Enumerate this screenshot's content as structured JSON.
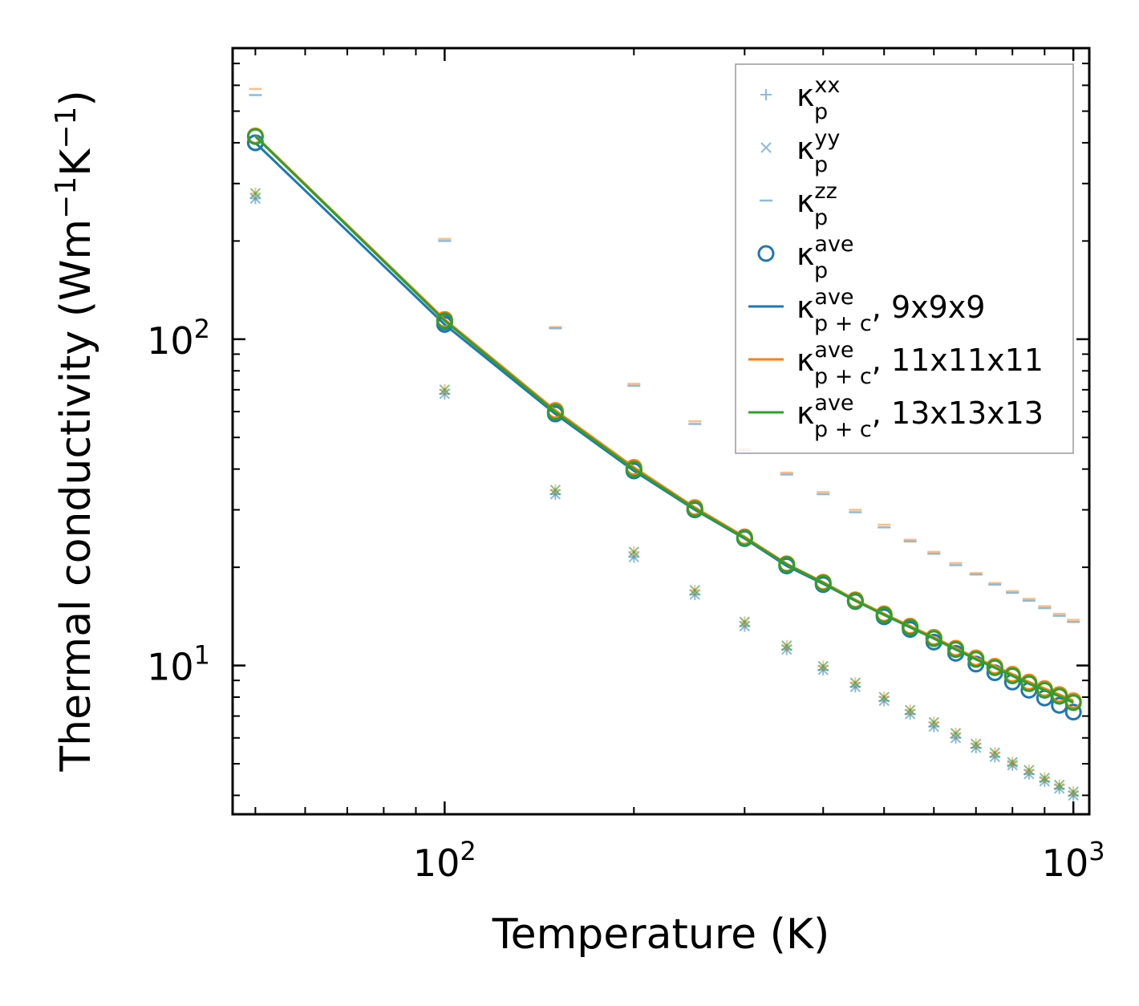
{
  "chart_data": {
    "type": "scatter",
    "title": "",
    "xlabel": "Temperature (K)",
    "ylabel": {
      "main": "Thermal conductivity (Wm",
      "sup1": "−1",
      "mid": "K",
      "sup2": "−1",
      "end": ")"
    },
    "xscale": "log",
    "yscale": "log",
    "xlim": [
      46,
      1060
    ],
    "ylim": [
      3.5,
      780
    ],
    "xticks": [
      {
        "value": 100,
        "base": "10",
        "exp": "2"
      },
      {
        "value": 1000,
        "base": "10",
        "exp": "3"
      }
    ],
    "yticks": [
      {
        "value": 10,
        "base": "10",
        "exp": "1"
      },
      {
        "value": 100,
        "base": "10",
        "exp": "2"
      }
    ],
    "legend_position": "top-right",
    "x": [
      50,
      100,
      150,
      200,
      250,
      300,
      350,
      400,
      450,
      500,
      550,
      600,
      650,
      700,
      750,
      800,
      850,
      900,
      950,
      1000
    ],
    "series": [
      {
        "name": "kp_xx",
        "kind": "marker",
        "marker": "plus",
        "color": "#1f77b4",
        "alpha": 0.5,
        "sub_var": "0",
        "values": [
          270,
          68,
          33.5,
          21.5,
          16.5,
          13.2,
          11.2,
          9.7,
          8.6,
          7.8,
          7.1,
          6.5,
          6.0,
          5.6,
          5.25,
          4.95,
          4.65,
          4.42,
          4.2,
          4.0
        ]
      },
      {
        "name": "kp_yy",
        "kind": "marker",
        "marker": "x",
        "color": "#1f77b4",
        "alpha": 0.5,
        "values": [
          270,
          68,
          33.5,
          21.5,
          16.5,
          13.2,
          11.2,
          9.7,
          8.6,
          7.8,
          7.1,
          6.5,
          6.0,
          5.6,
          5.25,
          4.95,
          4.65,
          4.42,
          4.2,
          4.0
        ]
      },
      {
        "name": "kp_zz",
        "kind": "marker",
        "marker": "hline",
        "color": "#1f77b4",
        "alpha": 0.5,
        "values": [
          560,
          200,
          108,
          72,
          55,
          45.5,
          38.5,
          33.5,
          29.5,
          26.5,
          24.0,
          22.0,
          20.3,
          19.0,
          17.7,
          16.7,
          15.8,
          15.0,
          14.2,
          13.6
        ]
      },
      {
        "name": "kp_ave",
        "kind": "marker",
        "marker": "circle",
        "color": "#1f77b4",
        "alpha": 1,
        "values": [
          400,
          113,
          59.5,
          39.5,
          30.0,
          24.5,
          20.2,
          17.7,
          15.7,
          14.1,
          12.9,
          11.8,
          10.9,
          10.1,
          9.5,
          8.9,
          8.4,
          7.95,
          7.55,
          7.2
        ]
      },
      {
        "name": "kpc_ave_9",
        "kind": "line+marker",
        "color": "#1f77b4",
        "values": [
          400,
          111,
          59,
          39.5,
          30.0,
          24.5,
          20.2,
          17.8,
          15.8,
          14.3,
          13.1,
          12.1,
          11.2,
          10.45,
          9.85,
          9.3,
          8.8,
          8.4,
          8.05,
          7.7
        ]
      },
      {
        "name": "kpc_ave_11",
        "kind": "line+marker",
        "color": "#ff7f0e",
        "values": [
          420,
          115,
          60.5,
          40.5,
          30.5,
          24.8,
          20.5,
          18.0,
          15.9,
          14.4,
          13.2,
          12.2,
          11.3,
          10.55,
          9.95,
          9.4,
          8.9,
          8.5,
          8.15,
          7.8
        ]
      },
      {
        "name": "kpc_ave_13",
        "kind": "line+marker",
        "color": "#2ca02c",
        "values": [
          418,
          114,
          59.8,
          40.0,
          30.2,
          24.6,
          20.4,
          17.9,
          15.8,
          14.3,
          13.1,
          12.1,
          11.2,
          10.45,
          9.85,
          9.3,
          8.8,
          8.4,
          8.05,
          7.7
        ]
      },
      {
        "name": "kp_xx_11",
        "kind": "marker",
        "marker": "plus",
        "color": "#ff7f0e",
        "alpha": 0.5,
        "values": [
          280,
          70,
          34.5,
          22.3,
          17.0,
          13.6,
          11.5,
          9.95,
          8.85,
          8.0,
          7.3,
          6.7,
          6.2,
          5.75,
          5.4,
          5.05,
          4.78,
          4.52,
          4.3,
          4.1
        ]
      },
      {
        "name": "kp_yy_13",
        "kind": "marker",
        "marker": "x",
        "color": "#2ca02c",
        "alpha": 0.6,
        "values": [
          280,
          70,
          34.5,
          22.3,
          17.0,
          13.6,
          11.5,
          9.95,
          8.85,
          8.0,
          7.3,
          6.7,
          6.2,
          5.75,
          5.4,
          5.05,
          4.78,
          4.52,
          4.3,
          4.1
        ]
      },
      {
        "name": "kp_zz_11",
        "kind": "marker",
        "marker": "hline",
        "color": "#ff7f0e",
        "alpha": 0.5,
        "values": [
          585,
          203,
          109,
          73,
          56,
          46,
          39,
          34,
          30,
          27,
          24.3,
          22.3,
          20.6,
          19.2,
          17.9,
          16.9,
          16.0,
          15.2,
          14.4,
          13.8
        ]
      }
    ],
    "legend": [
      {
        "marker": "plus",
        "color": "#1f77b4",
        "alpha": 0.5,
        "k": "κ",
        "sup": "xx",
        "sub": "p",
        "suffix": ""
      },
      {
        "marker": "x",
        "color": "#1f77b4",
        "alpha": 0.5,
        "k": "κ",
        "sup": "yy",
        "sub": "p",
        "suffix": ""
      },
      {
        "marker": "hline",
        "color": "#1f77b4",
        "alpha": 0.5,
        "k": "κ",
        "sup": "zz",
        "sub": "p",
        "suffix": ""
      },
      {
        "marker": "circle",
        "color": "#1f77b4",
        "alpha": 1,
        "k": "κ",
        "sup": "ave",
        "sub": "p",
        "suffix": ""
      },
      {
        "marker": "line",
        "color": "#1f77b4",
        "alpha": 1,
        "k": "κ",
        "sup": "ave",
        "sub": "p + c",
        "suffix": ", 9x9x9"
      },
      {
        "marker": "line",
        "color": "#ff7f0e",
        "alpha": 1,
        "k": "κ",
        "sup": "ave",
        "sub": "p + c",
        "suffix": ", 11x11x11"
      },
      {
        "marker": "line",
        "color": "#2ca02c",
        "alpha": 1,
        "k": "κ",
        "sup": "ave",
        "sub": "p + c",
        "suffix": ", 13x13x13"
      }
    ]
  }
}
